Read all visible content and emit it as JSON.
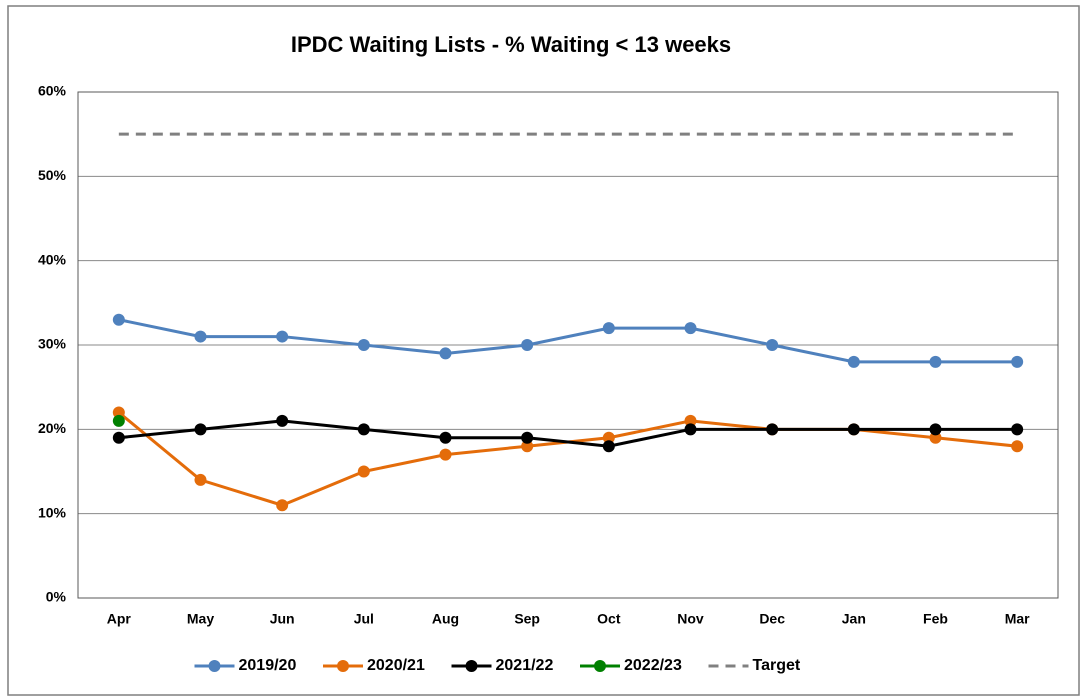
{
  "chart_data": {
    "type": "line",
    "title": "IPDC Waiting Lists - % Waiting < 13 weeks",
    "categories": [
      "Apr",
      "May",
      "Jun",
      "Jul",
      "Aug",
      "Sep",
      "Oct",
      "Nov",
      "Dec",
      "Jan",
      "Feb",
      "Mar"
    ],
    "series": [
      {
        "name": "2019/20",
        "color": "#4f81bd",
        "values": [
          33,
          31,
          31,
          30,
          29,
          30,
          32,
          32,
          30,
          28,
          28,
          28
        ]
      },
      {
        "name": "2020/21",
        "color": "#e46c0a",
        "values": [
          22,
          14,
          11,
          15,
          17,
          18,
          19,
          21,
          20,
          20,
          19,
          18
        ]
      },
      {
        "name": "2021/22",
        "color": "#000000",
        "values": [
          19,
          20,
          21,
          20,
          19,
          19,
          18,
          20,
          20,
          20,
          20,
          20
        ]
      },
      {
        "name": "2022/23",
        "color": "#008000",
        "values": [
          21,
          null,
          null,
          null,
          null,
          null,
          null,
          null,
          null,
          null,
          null,
          null
        ]
      },
      {
        "name": "Target",
        "color": "#808080",
        "dashed": true,
        "markers": false,
        "values": [
          55,
          55,
          55,
          55,
          55,
          55,
          55,
          55,
          55,
          55,
          55,
          55
        ]
      }
    ],
    "ylim": [
      0,
      60
    ],
    "yticks": [
      {
        "value": 0,
        "label": "0%"
      },
      {
        "value": 10,
        "label": "10%"
      },
      {
        "value": 20,
        "label": "20%"
      },
      {
        "value": 30,
        "label": "30%"
      },
      {
        "value": 40,
        "label": "40%"
      },
      {
        "value": 50,
        "label": "50%"
      },
      {
        "value": 60,
        "label": "60%"
      }
    ],
    "grid": true,
    "legend": "bottom"
  }
}
